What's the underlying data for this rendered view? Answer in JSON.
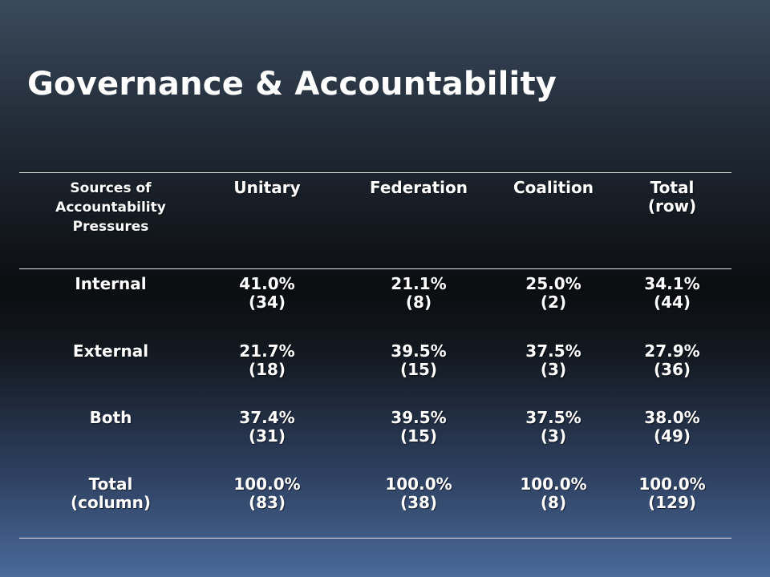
{
  "title": "Governance & Accountability",
  "table": {
    "header": {
      "first": [
        "Sources of",
        "Accountability",
        "Pressures"
      ],
      "unitary": [
        "Unitary"
      ],
      "federation": [
        "Federation"
      ],
      "coalition": [
        "Coalition"
      ],
      "total": [
        "Total",
        "(row)"
      ]
    },
    "rows": [
      {
        "label": [
          "Internal"
        ],
        "unitary": [
          "41.0%",
          "(34)"
        ],
        "federation": [
          "21.1%",
          "(8)"
        ],
        "coalition": [
          "25.0%",
          "(2)"
        ],
        "total": [
          "34.1%",
          "(44)"
        ]
      },
      {
        "label": [
          "External"
        ],
        "unitary": [
          "21.7%",
          "(18)"
        ],
        "federation": [
          "39.5%",
          "(15)"
        ],
        "coalition": [
          "37.5%",
          "(3)"
        ],
        "total": [
          "27.9%",
          "(36)"
        ]
      },
      {
        "label": [
          "Both"
        ],
        "unitary": [
          "37.4%",
          "(31)"
        ],
        "federation": [
          "39.5%",
          "(15)"
        ],
        "coalition": [
          "37.5%",
          "(3)"
        ],
        "total": [
          "38.0%",
          "(49)"
        ]
      },
      {
        "label": [
          "Total",
          "(column)"
        ],
        "unitary": [
          "100.0%",
          "(83)"
        ],
        "federation": [
          "100.0%",
          "(38)"
        ],
        "coalition": [
          "100.0%",
          "(8)"
        ],
        "total": [
          "100.0%",
          "(129)"
        ]
      }
    ]
  }
}
